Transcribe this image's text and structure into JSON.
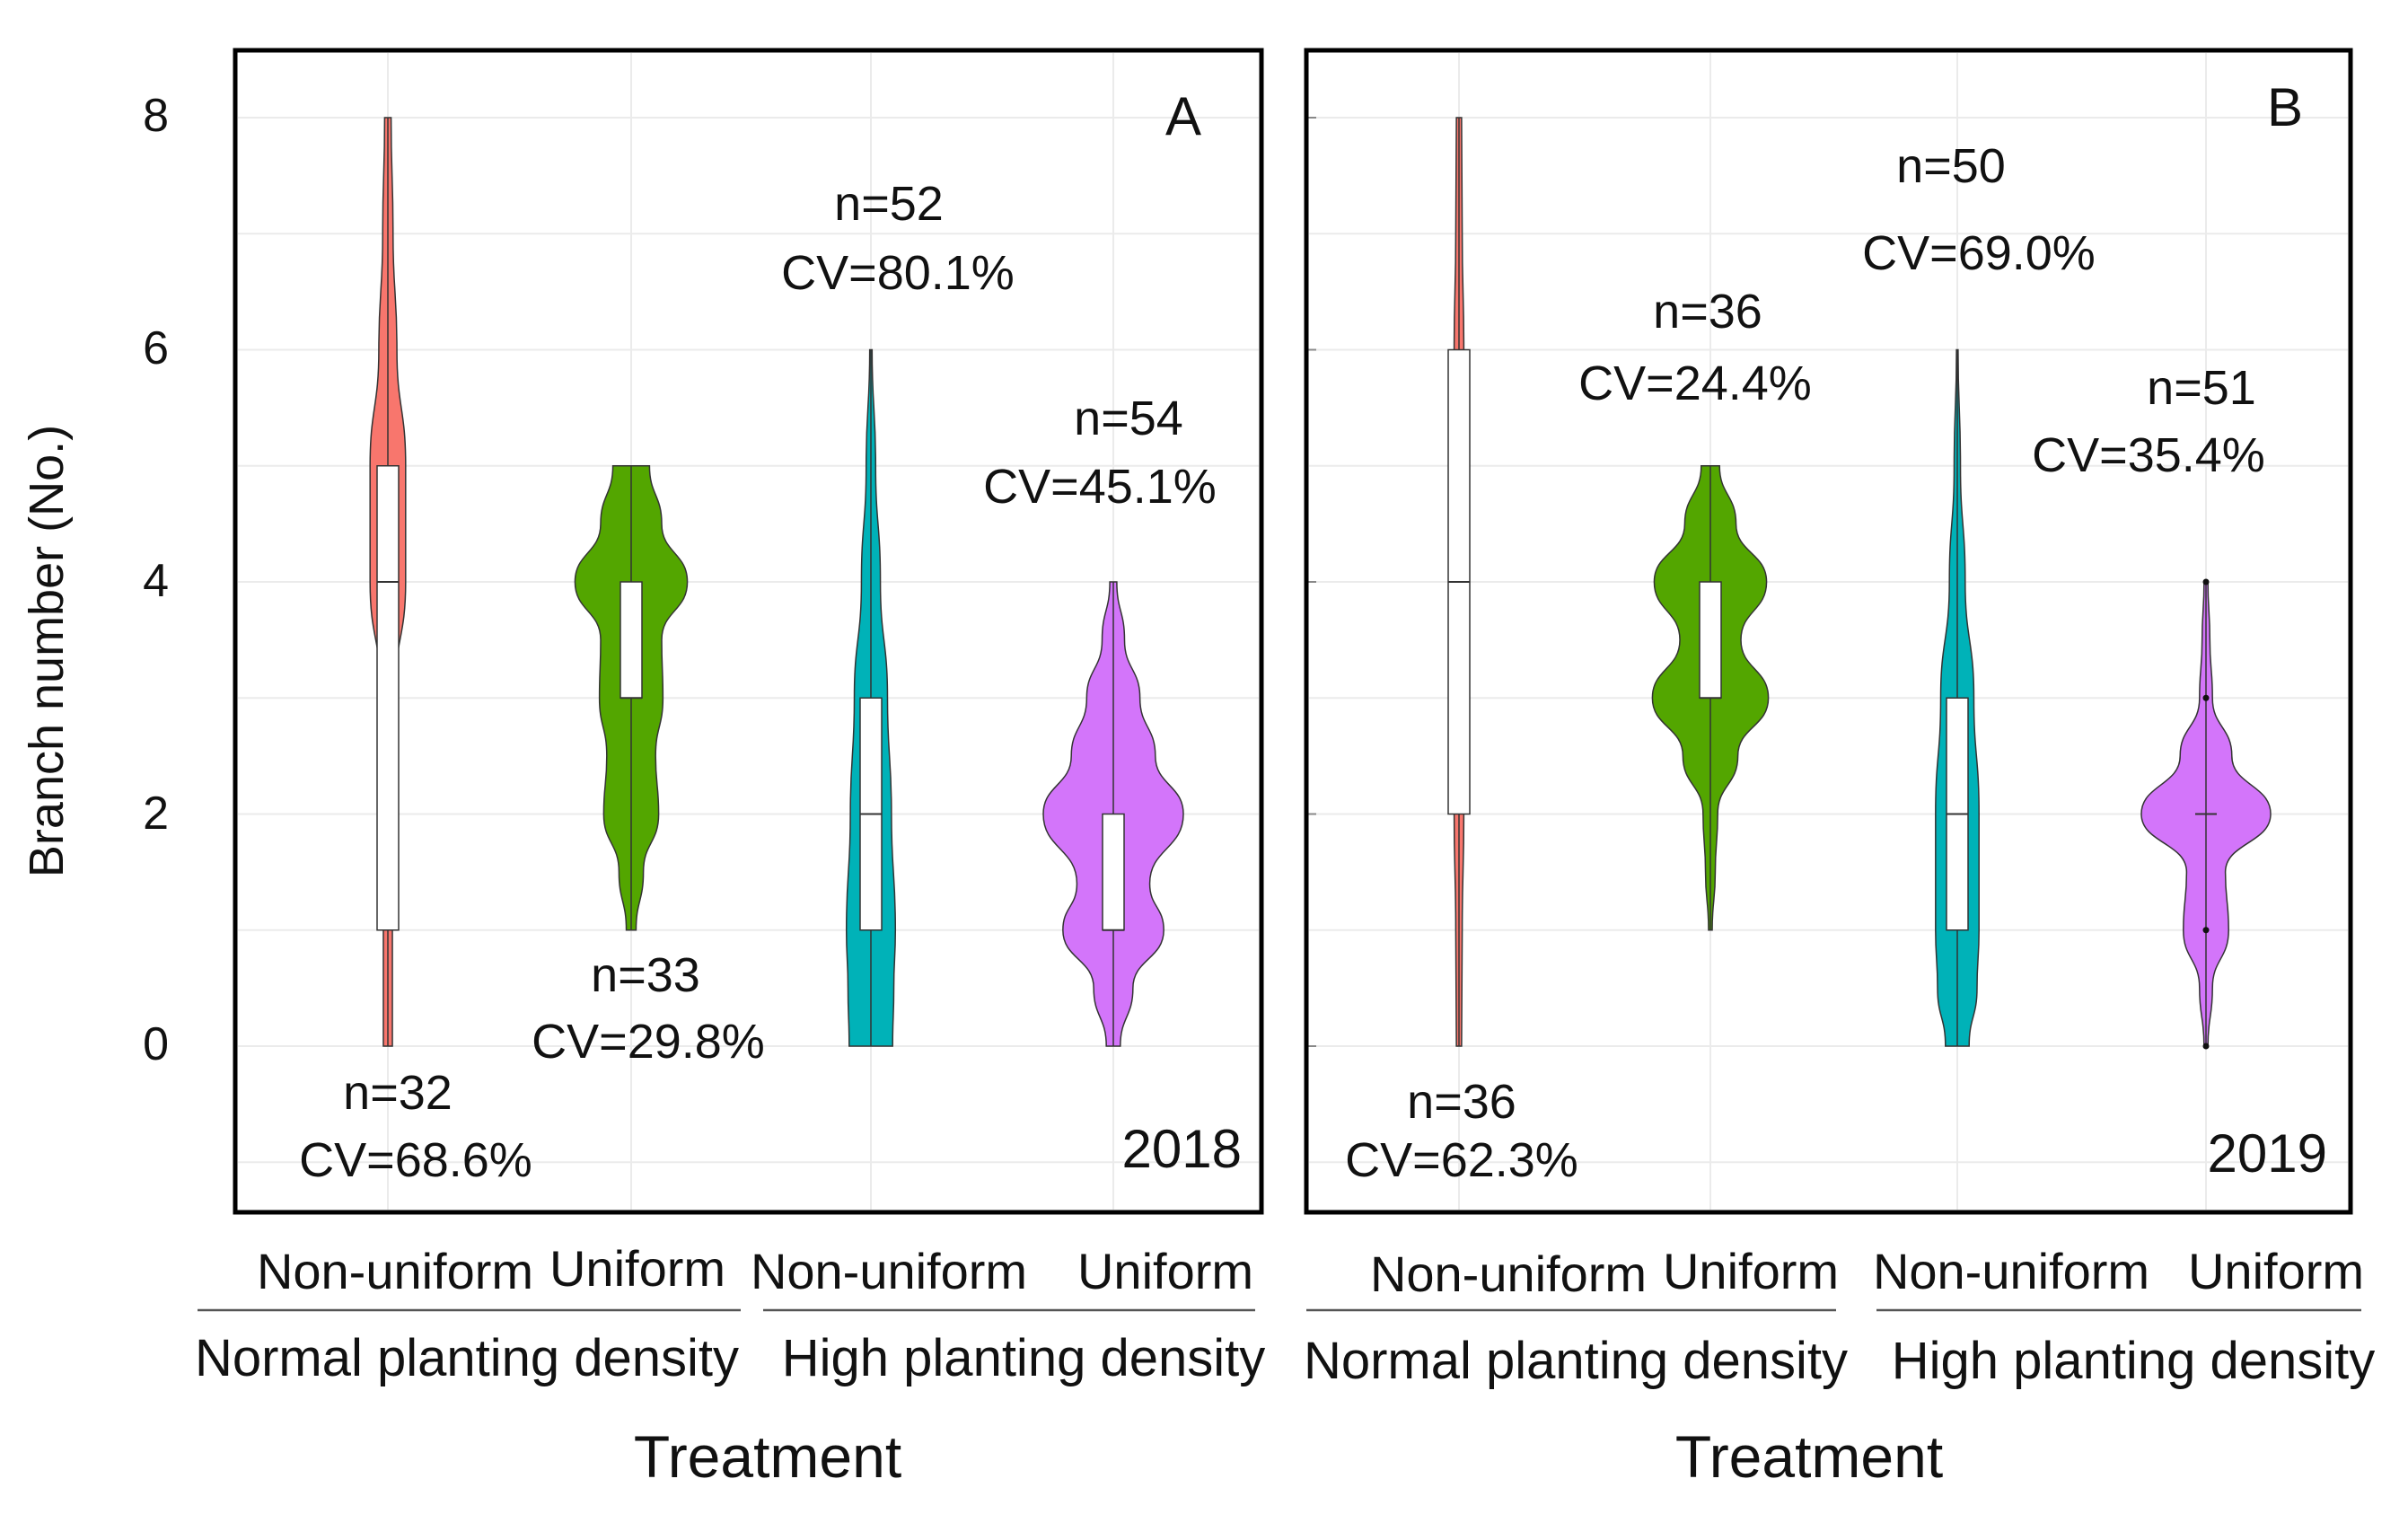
{
  "shared": {
    "ylabel": "Branch number (No.)",
    "yticks": [
      0,
      2,
      4,
      6,
      8
    ],
    "ylim": [
      -1.5,
      8.6
    ],
    "category_labels": [
      "Non-uniform",
      "Uniform",
      "Non-uniform",
      "Uniform"
    ],
    "group_labels": [
      "Normal planting density",
      "High planting density"
    ],
    "xlabel": "Treatment"
  },
  "chart_data": [
    {
      "type": "violin",
      "panel": "A",
      "year": "2018",
      "xlabel": "Treatment",
      "ylabel": "Branch number (No.)",
      "ylim": [
        -1.5,
        8.6
      ],
      "categories": [
        "Non-uniform",
        "Uniform",
        "Non-uniform",
        "Uniform"
      ],
      "groups": [
        "Normal planting density",
        "Normal planting density",
        "High planting density",
        "High planting density"
      ],
      "series": [
        {
          "name": "Normal planting density - Non-uniform",
          "color": "#F8766D",
          "n": "n=32",
          "cv": "CV=68.6%",
          "min": 0,
          "q1": 1,
          "median": 4,
          "q3": 5,
          "max": 8,
          "label_pos": "below",
          "density": [
            [
              0,
              0.14
            ],
            [
              1,
              0.14
            ],
            [
              2,
              0.16
            ],
            [
              3,
              0.2
            ],
            [
              4,
              0.55
            ],
            [
              5,
              0.55
            ],
            [
              6,
              0.28
            ],
            [
              7,
              0.16
            ],
            [
              8,
              0.1
            ]
          ]
        },
        {
          "name": "Normal planting density - Uniform",
          "color": "#53A600",
          "n": "n=33",
          "cv": "CV=29.8%",
          "min": 1,
          "q1": 3,
          "median": 3,
          "q3": 4,
          "max": 5,
          "label_pos": "below",
          "density": [
            [
              1,
              0.08
            ],
            [
              1.5,
              0.2
            ],
            [
              2,
              0.45
            ],
            [
              2.5,
              0.4
            ],
            [
              3,
              0.52
            ],
            [
              3.5,
              0.5
            ],
            [
              4,
              0.92
            ],
            [
              4.5,
              0.5
            ],
            [
              5,
              0.3
            ]
          ]
        },
        {
          "name": "High planting density - Non-uniform",
          "color": "#00B2B8",
          "n": "n=52",
          "cv": "CV=80.1%",
          "min": 0,
          "q1": 1,
          "median": 2,
          "q3": 3,
          "max": 6,
          "label_pos": "above",
          "density": [
            [
              0,
              0.55
            ],
            [
              0.5,
              0.58
            ],
            [
              1,
              0.62
            ],
            [
              2,
              0.52
            ],
            [
              3,
              0.42
            ],
            [
              4,
              0.24
            ],
            [
              5,
              0.12
            ],
            [
              6,
              0.03
            ]
          ]
        },
        {
          "name": "High planting density - Uniform",
          "color": "#D375FA",
          "n": "n=54",
          "cv": "CV=45.1%",
          "min": 0,
          "q1": 1,
          "median": 1,
          "q3": 2,
          "max": 4,
          "label_pos": "above",
          "density": [
            [
              0,
              0.1
            ],
            [
              0.5,
              0.28
            ],
            [
              1,
              0.72
            ],
            [
              1.4,
              0.52
            ],
            [
              2,
              1.0
            ],
            [
              2.5,
              0.6
            ],
            [
              3,
              0.38
            ],
            [
              3.5,
              0.16
            ],
            [
              4,
              0.05
            ]
          ]
        }
      ]
    },
    {
      "type": "violin",
      "panel": "B",
      "year": "2019",
      "xlabel": "Treatment",
      "ylabel": "Branch number (No.)",
      "ylim": [
        -1.5,
        8.6
      ],
      "categories": [
        "Non-uniform",
        "Uniform",
        "Non-uniform",
        "Uniform"
      ],
      "groups": [
        "Normal planting density",
        "Normal planting density",
        "High planting density",
        "High planting density"
      ],
      "series": [
        {
          "name": "Normal planting density - Non-uniform",
          "color": "#F8766D",
          "n": "n=36",
          "cv": "CV=62.3%",
          "min": 0,
          "q1": 2,
          "median": 4,
          "q3": 6,
          "max": 8,
          "label_pos": "below",
          "density": [
            [
              0,
              0.08
            ],
            [
              1,
              0.1
            ],
            [
              2,
              0.15
            ],
            [
              3,
              0.18
            ],
            [
              4,
              0.2
            ],
            [
              5,
              0.2
            ],
            [
              6,
              0.15
            ],
            [
              7,
              0.1
            ],
            [
              8,
              0.08
            ]
          ]
        },
        {
          "name": "Normal planting density - Uniform",
          "color": "#53A600",
          "n": "n=36",
          "cv": "CV=24.4%",
          "min": 1,
          "q1": 3,
          "median": 3,
          "q3": 4,
          "max": 5,
          "label_pos": "above",
          "density": [
            [
              1,
              0.03
            ],
            [
              1.5,
              0.08
            ],
            [
              2,
              0.12
            ],
            [
              2.5,
              0.45
            ],
            [
              3,
              0.95
            ],
            [
              3.5,
              0.5
            ],
            [
              4,
              0.92
            ],
            [
              4.5,
              0.42
            ],
            [
              5,
              0.15
            ]
          ]
        },
        {
          "name": "High planting density - Non-uniform",
          "color": "#00B2B8",
          "n": "n=50",
          "cv": "CV=69.0%",
          "min": 0,
          "q1": 1,
          "median": 2,
          "q3": 3,
          "max": 6,
          "label_pos": "above",
          "density": [
            [
              0,
              0.3
            ],
            [
              0.5,
              0.5
            ],
            [
              1,
              0.55
            ],
            [
              2,
              0.55
            ],
            [
              3,
              0.42
            ],
            [
              4,
              0.2
            ],
            [
              5,
              0.08
            ],
            [
              6,
              0.02
            ]
          ]
        },
        {
          "name": "High planting density - Uniform",
          "color": "#D375FA",
          "n": "n=51",
          "cv": "CV=35.4%",
          "min": 0,
          "q1": 2,
          "median": 2,
          "q3": 2,
          "max": 4,
          "label_pos": "above",
          "outliers": [
            0,
            1,
            3,
            4
          ],
          "density": [
            [
              0,
              0.03
            ],
            [
              0.5,
              0.1
            ],
            [
              1,
              0.35
            ],
            [
              1.5,
              0.3
            ],
            [
              2,
              1.0
            ],
            [
              2.5,
              0.4
            ],
            [
              3,
              0.1
            ],
            [
              3.5,
              0.06
            ],
            [
              4,
              0.03
            ]
          ]
        }
      ]
    }
  ]
}
